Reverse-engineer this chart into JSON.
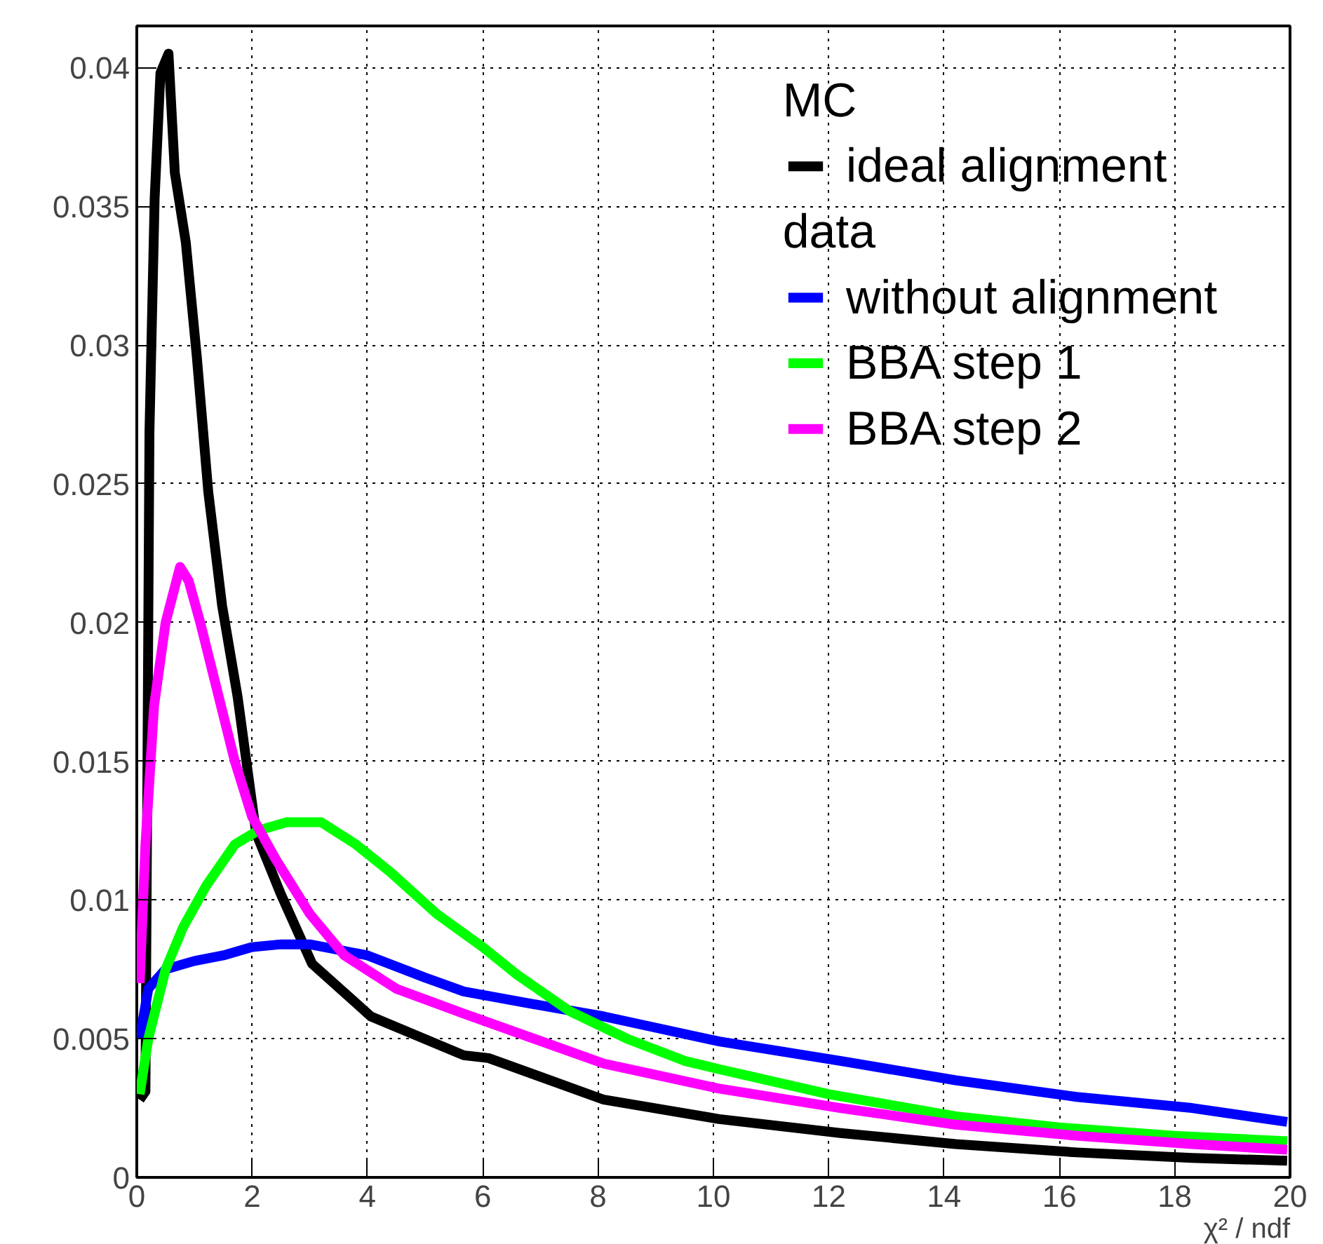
{
  "chart_data": {
    "type": "line",
    "xlabel": "χ² / ndf",
    "xlim": [
      0,
      20
    ],
    "xticks": [
      0,
      2,
      4,
      6,
      8,
      10,
      12,
      14,
      16,
      18,
      20
    ],
    "ylim": [
      0,
      0.0415
    ],
    "yticks": [
      0,
      0.005,
      0.01,
      0.015,
      0.02,
      0.025,
      0.03,
      0.035,
      0.04
    ],
    "grid": true,
    "legend": "top right",
    "line_style": "solid",
    "annotations": [
      "MC",
      "data"
    ],
    "series": [
      {
        "name": "ideal alignment",
        "color": "#000000",
        "x": [
          0.05,
          0.15,
          0.22,
          0.31,
          0.41,
          0.55,
          0.66,
          0.85,
          1.04,
          1.24,
          1.48,
          1.75,
          2.07,
          2.5,
          3.04,
          4.06,
          5.67,
          6.1,
          8.1,
          10.1,
          12.2,
          14.2,
          16.3,
          18.3,
          19.95
        ],
        "values": [
          0.0028,
          0.0031,
          0.0269,
          0.0353,
          0.0398,
          0.0405,
          0.0362,
          0.0337,
          0.0296,
          0.0247,
          0.0206,
          0.0173,
          0.0124,
          0.0102,
          0.0077,
          0.0058,
          0.0044,
          0.0043,
          0.0028,
          0.0021,
          0.0016,
          0.0012,
          0.0009,
          0.0007,
          0.0006
        ]
      },
      {
        "name": "without alignment",
        "color": "#0000ff",
        "x": [
          0.05,
          0.2,
          0.5,
          1,
          1.5,
          2,
          2.5,
          3,
          4,
          5,
          5.67,
          7,
          8.1,
          10.1,
          12.2,
          14.2,
          16.3,
          18.3,
          19.95
        ],
        "values": [
          0.005,
          0.0068,
          0.0075,
          0.0078,
          0.008,
          0.0083,
          0.0084,
          0.0084,
          0.008,
          0.0072,
          0.0067,
          0.0062,
          0.0058,
          0.0049,
          0.0042,
          0.0035,
          0.0029,
          0.0025,
          0.002
        ]
      },
      {
        "name": "BBA step 1",
        "color": "#00ff00",
        "x": [
          0.05,
          0.2,
          0.5,
          0.8,
          1.2,
          1.7,
          2.1,
          2.6,
          3.2,
          3.8,
          4.4,
          5.2,
          6,
          6.6,
          7.5,
          8.5,
          9.5,
          10.1,
          12,
          14.2,
          16,
          18,
          19.95
        ],
        "values": [
          0.003,
          0.005,
          0.0075,
          0.009,
          0.0105,
          0.012,
          0.0125,
          0.0128,
          0.0128,
          0.012,
          0.011,
          0.0095,
          0.0083,
          0.0073,
          0.006,
          0.005,
          0.0042,
          0.0039,
          0.003,
          0.0022,
          0.0018,
          0.0015,
          0.0013
        ]
      },
      {
        "name": "BBA step 2",
        "color": "#ff00ff",
        "x": [
          0.05,
          0.15,
          0.3,
          0.5,
          0.75,
          0.9,
          1.1,
          1.4,
          1.7,
          2,
          2.4,
          3,
          3.6,
          4.5,
          5.67,
          8.1,
          10.1,
          12.2,
          14.2,
          16.3,
          18.3,
          19.95
        ],
        "values": [
          0.007,
          0.012,
          0.017,
          0.02,
          0.022,
          0.0215,
          0.02,
          0.0175,
          0.015,
          0.013,
          0.0115,
          0.0095,
          0.008,
          0.0068,
          0.0059,
          0.0041,
          0.0032,
          0.0025,
          0.0019,
          0.0015,
          0.0012,
          0.001
        ]
      }
    ]
  }
}
